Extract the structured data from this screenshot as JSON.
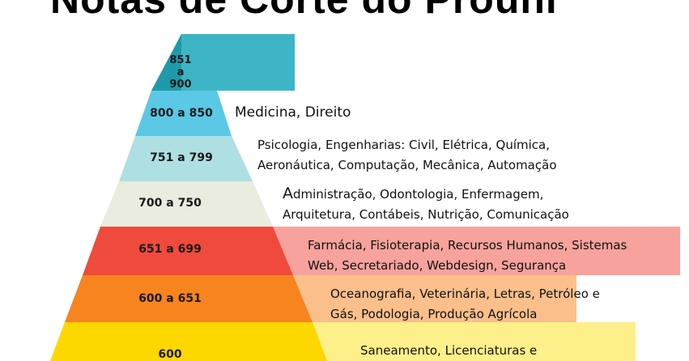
{
  "title": "Notas de Corte do Prouni",
  "colors": {
    "tier_1": "#1e9aa8",
    "tier_1_band": "#3db5c6",
    "tier_2": "#5bc8e5",
    "tier_2_band": "#ffffff",
    "tier_3": "#aedfe3",
    "tier_3_band": "#ffffff",
    "tier_4": "#e9ecdf",
    "tier_4_band": "#ffffff",
    "tier_5": "#ef4a3c",
    "tier_5_band": "#f7a29c",
    "tier_6": "#f7841f",
    "tier_6_band": "#fbbf8c",
    "tier_7": "#fcd700",
    "tier_7_band": "#fdef8a"
  },
  "tiers": [
    {
      "range_lines": [
        "851",
        "a",
        "900"
      ],
      "courses": []
    },
    {
      "range": "800 a 850",
      "courses": [
        "Medicina, Direito"
      ]
    },
    {
      "range": "751 a 799",
      "courses": [
        "Psicologia, Engenharias: Civil, Elétrica, Química,",
        "Aeronáutica, Computação, Mecânica, Automação"
      ]
    },
    {
      "range": "700 a 750",
      "course_initial": "A",
      "courses": [
        "dministração, Odontologia, Enfermagem,",
        "Arquitetura, Contábeis, Nutrição, Comunicação"
      ]
    },
    {
      "range": "651 a 699",
      "courses": [
        "Farmácia, Fisioterapia, Recursos Humanos, Sistemas",
        "Web, Secretariado, Webdesign, Segurança"
      ]
    },
    {
      "range": "600 a 651",
      "courses": [
        "Oceanografia, Veterinária, Letras, Petróleo e",
        "Gás, Podologia, Produção Agrícola"
      ]
    },
    {
      "range": "600",
      "courses": [
        "Saneamento, Licenciaturas e"
      ]
    }
  ]
}
